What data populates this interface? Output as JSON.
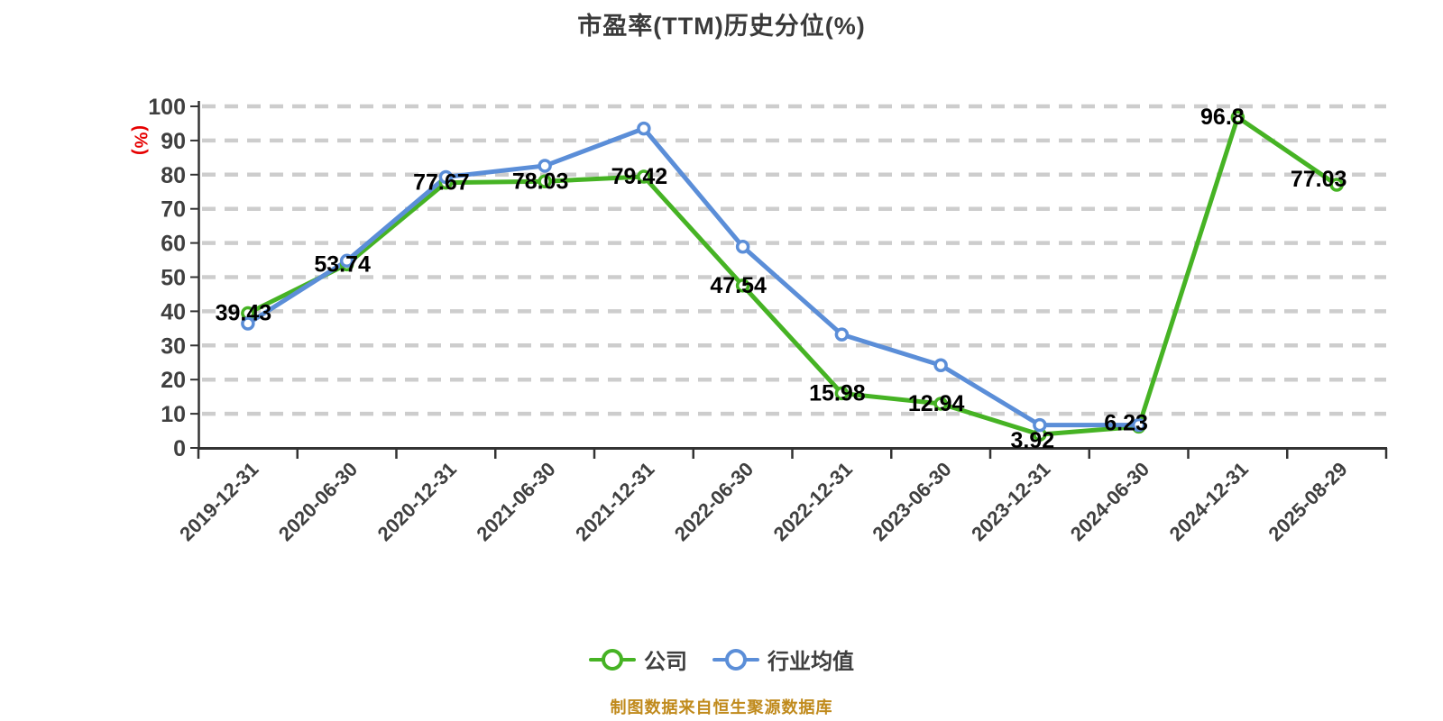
{
  "title": "市盈率(TTM)历史分位(%)",
  "y_axis_name": "(%)",
  "footer_note": "制图数据来自恒生聚源数据库",
  "legend": {
    "items": [
      {
        "label": "公司",
        "color": "#46b324"
      },
      {
        "label": "行业均值",
        "color": "#5b8ed8"
      }
    ]
  },
  "colors": {
    "background": "#ffffff",
    "title_text": "#3a3a3a",
    "axis_line": "#333333",
    "tick_label": "#3f3f3f",
    "grid_line": "#cdcdcd",
    "data_label": "#000000",
    "y_axis_name": "#e60000",
    "footer_text": "#c08a1c",
    "marker_fill": "#ffffff",
    "company_series": "#46b324",
    "industry_series": "#5b8ed8"
  },
  "chart_data": {
    "type": "line",
    "title": "市盈率(TTM)历史分位(%)",
    "ylabel": "(%)",
    "xlabel": "",
    "ylim": [
      0,
      100
    ],
    "y_tick_step": 10,
    "y_ticks": [
      0,
      10,
      20,
      30,
      40,
      50,
      60,
      70,
      80,
      90,
      100
    ],
    "grid": "horizontal dashed",
    "legend_position": "bottom",
    "categories": [
      "2019-12-31",
      "2020-06-30",
      "2020-12-31",
      "2021-06-30",
      "2021-12-31",
      "2022-06-30",
      "2022-12-31",
      "2023-06-30",
      "2023-12-31",
      "2024-06-30",
      "2024-12-31",
      "2025-08-29"
    ],
    "series": [
      {
        "name": "公司",
        "color": "#46b324",
        "show_labels": true,
        "values": [
          39.43,
          53.74,
          77.67,
          78.03,
          79.42,
          47.54,
          15.98,
          12.94,
          3.92,
          6.23,
          96.8,
          77.03
        ]
      },
      {
        "name": "行业均值",
        "color": "#5b8ed8",
        "show_labels": false,
        "values": [
          36.4,
          54.8,
          79.3,
          82.6,
          93.5,
          58.9,
          33.2,
          24.2,
          6.7,
          6.7,
          null,
          null
        ]
      }
    ]
  }
}
